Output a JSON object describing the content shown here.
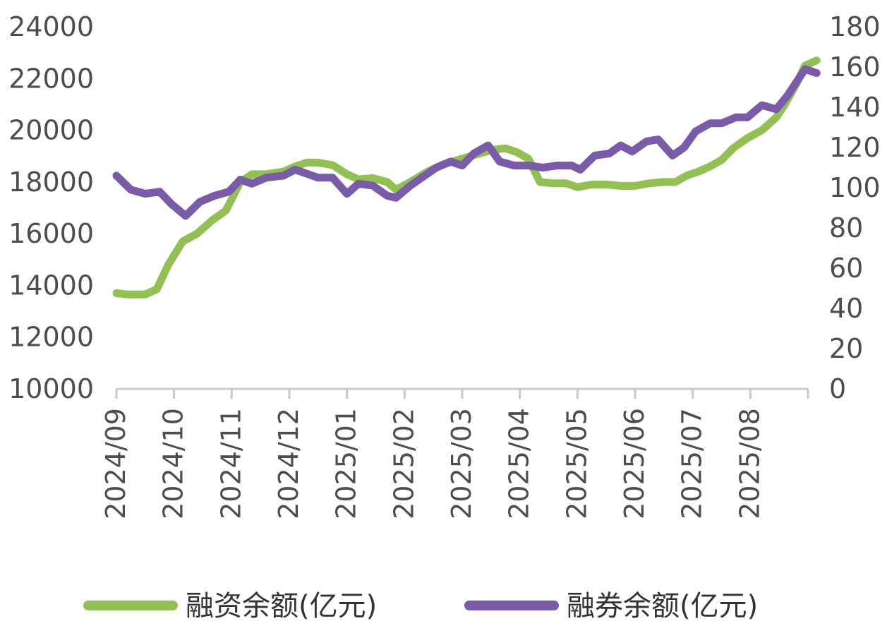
{
  "chart_data": {
    "type": "line",
    "title": "",
    "xlabel": "",
    "ylabel": "",
    "y2label": "",
    "grid": false,
    "legend_position": "bottom",
    "x_ticks": [
      "2024/09",
      "2024/10",
      "2024/11",
      "2024/12",
      "2025/01",
      "2025/02",
      "2025/03",
      "2025/04",
      "2025/05",
      "2025/06",
      "2025/07",
      "2025/08"
    ],
    "x_range": [
      0,
      12
    ],
    "y_left": {
      "range": [
        10000,
        24000
      ],
      "ticks": [
        "10000",
        "12000",
        "14000",
        "16000",
        "18000",
        "20000",
        "22000",
        "24000"
      ]
    },
    "y_right": {
      "range": [
        0,
        180
      ],
      "ticks": [
        "0",
        "20",
        "40",
        "60",
        "80",
        "100",
        "120",
        "140",
        "160",
        "180"
      ]
    },
    "series": [
      {
        "name": "融资余额(亿元)",
        "axis": "left",
        "color": "#92c054",
        "points": [
          [
            0.0,
            13700
          ],
          [
            0.2,
            13650
          ],
          [
            0.5,
            13650
          ],
          [
            0.7,
            13850
          ],
          [
            0.9,
            14800
          ],
          [
            1.15,
            15700
          ],
          [
            1.4,
            16000
          ],
          [
            1.65,
            16500
          ],
          [
            1.9,
            16900
          ],
          [
            2.15,
            18000
          ],
          [
            2.35,
            18300
          ],
          [
            2.6,
            18300
          ],
          [
            2.9,
            18400
          ],
          [
            3.1,
            18600
          ],
          [
            3.3,
            18750
          ],
          [
            3.5,
            18750
          ],
          [
            3.75,
            18650
          ],
          [
            4.0,
            18300
          ],
          [
            4.2,
            18100
          ],
          [
            4.45,
            18150
          ],
          [
            4.7,
            18000
          ],
          [
            4.85,
            17700
          ],
          [
            5.1,
            18000
          ],
          [
            5.4,
            18400
          ],
          [
            5.7,
            18700
          ],
          [
            6.0,
            18900
          ],
          [
            6.3,
            19100
          ],
          [
            6.55,
            19250
          ],
          [
            6.75,
            19300
          ],
          [
            6.95,
            19150
          ],
          [
            7.15,
            18900
          ],
          [
            7.35,
            18000
          ],
          [
            7.55,
            17950
          ],
          [
            7.8,
            17950
          ],
          [
            8.0,
            17800
          ],
          [
            8.25,
            17900
          ],
          [
            8.5,
            17900
          ],
          [
            8.75,
            17850
          ],
          [
            9.0,
            17850
          ],
          [
            9.25,
            17950
          ],
          [
            9.5,
            18000
          ],
          [
            9.7,
            18000
          ],
          [
            9.9,
            18250
          ],
          [
            10.1,
            18400
          ],
          [
            10.3,
            18600
          ],
          [
            10.5,
            18850
          ],
          [
            10.7,
            19300
          ],
          [
            10.95,
            19700
          ],
          [
            11.2,
            20000
          ],
          [
            11.45,
            20500
          ],
          [
            11.6,
            21000
          ],
          [
            11.8,
            21800
          ],
          [
            11.95,
            22500
          ],
          [
            12.15,
            22700
          ]
        ]
      },
      {
        "name": "融券余额(亿元)",
        "axis": "right",
        "color": "#7a5ba8",
        "points": [
          [
            0.0,
            106
          ],
          [
            0.25,
            99
          ],
          [
            0.5,
            97
          ],
          [
            0.75,
            98
          ],
          [
            0.95,
            92
          ],
          [
            1.2,
            86
          ],
          [
            1.45,
            93
          ],
          [
            1.7,
            96
          ],
          [
            1.95,
            98
          ],
          [
            2.15,
            104
          ],
          [
            2.35,
            102
          ],
          [
            2.6,
            105
          ],
          [
            2.9,
            106
          ],
          [
            3.1,
            109
          ],
          [
            3.3,
            107
          ],
          [
            3.5,
            105
          ],
          [
            3.75,
            105
          ],
          [
            4.0,
            97
          ],
          [
            4.2,
            102
          ],
          [
            4.45,
            101
          ],
          [
            4.7,
            96
          ],
          [
            4.85,
            95
          ],
          [
            5.1,
            101
          ],
          [
            5.35,
            106
          ],
          [
            5.55,
            110
          ],
          [
            5.8,
            113
          ],
          [
            6.0,
            111
          ],
          [
            6.2,
            117
          ],
          [
            6.45,
            121
          ],
          [
            6.65,
            113
          ],
          [
            6.9,
            111
          ],
          [
            7.15,
            111
          ],
          [
            7.4,
            110
          ],
          [
            7.65,
            111
          ],
          [
            7.9,
            111
          ],
          [
            8.05,
            109
          ],
          [
            8.3,
            116
          ],
          [
            8.55,
            117
          ],
          [
            8.75,
            121
          ],
          [
            8.95,
            118
          ],
          [
            9.2,
            123
          ],
          [
            9.4,
            124
          ],
          [
            9.65,
            116
          ],
          [
            9.85,
            120
          ],
          [
            10.05,
            128
          ],
          [
            10.3,
            132
          ],
          [
            10.5,
            132
          ],
          [
            10.75,
            135
          ],
          [
            10.95,
            135
          ],
          [
            11.2,
            141
          ],
          [
            11.45,
            139
          ],
          [
            11.65,
            146
          ],
          [
            11.95,
            159
          ],
          [
            12.15,
            157
          ]
        ]
      }
    ]
  }
}
